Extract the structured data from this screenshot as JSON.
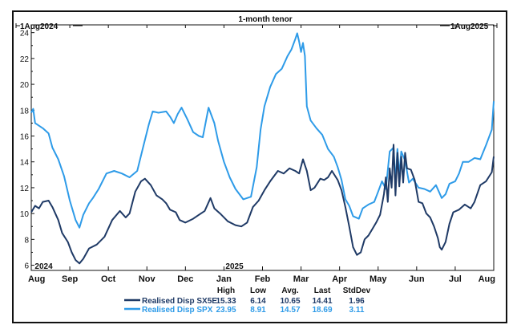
{
  "chart_data": {
    "type": "line",
    "title": "1-month tenor",
    "range_start_label": "1Aug2024",
    "range_end_label": "1Aug2025",
    "ylim": [
      5.6,
      24.6
    ],
    "yticks": [
      6,
      8,
      10,
      12,
      14,
      16,
      18,
      20,
      22,
      24
    ],
    "xlim": [
      0,
      12
    ],
    "month_ticks": [
      {
        "label": "Aug",
        "x": 0
      },
      {
        "label": "Sep",
        "x": 1
      },
      {
        "label": "Oct",
        "x": 2
      },
      {
        "label": "Nov",
        "x": 3
      },
      {
        "label": "Dec",
        "x": 4
      },
      {
        "label": "Jan",
        "x": 5
      },
      {
        "label": "Feb",
        "x": 6
      },
      {
        "label": "Mar",
        "x": 7
      },
      {
        "label": "Apr",
        "x": 8
      },
      {
        "label": "May",
        "x": 9
      },
      {
        "label": "Jun",
        "x": 10
      },
      {
        "label": "Jul",
        "x": 11
      },
      {
        "label": "Aug",
        "x": 12
      }
    ],
    "year_labels": [
      {
        "label": "2024",
        "x": 0.05
      },
      {
        "label": "2025",
        "x": 5.0
      }
    ],
    "stats_headers": [
      "High",
      "Low",
      "Avg.",
      "Last",
      "StdDev"
    ],
    "series": [
      {
        "name": "Realised Disp SX5E",
        "color": "#1f3a66",
        "stats": [
          "15.33",
          "6.14",
          "10.65",
          "14.41",
          "1.96"
        ],
        "points": [
          [
            0,
            10.1
          ],
          [
            0.1,
            10.6
          ],
          [
            0.2,
            10.4
          ],
          [
            0.3,
            10.9
          ],
          [
            0.45,
            11.0
          ],
          [
            0.55,
            10.5
          ],
          [
            0.7,
            9.5
          ],
          [
            0.8,
            8.5
          ],
          [
            0.95,
            7.8
          ],
          [
            1.05,
            7.0
          ],
          [
            1.15,
            6.4
          ],
          [
            1.25,
            6.14
          ],
          [
            1.35,
            6.5
          ],
          [
            1.5,
            7.3
          ],
          [
            1.7,
            7.6
          ],
          [
            1.9,
            8.2
          ],
          [
            2.1,
            9.5
          ],
          [
            2.3,
            10.2
          ],
          [
            2.45,
            9.7
          ],
          [
            2.55,
            10.0
          ],
          [
            2.7,
            11.7
          ],
          [
            2.85,
            12.5
          ],
          [
            2.95,
            12.7
          ],
          [
            3.1,
            12.2
          ],
          [
            3.25,
            11.4
          ],
          [
            3.4,
            11.1
          ],
          [
            3.5,
            10.8
          ],
          [
            3.6,
            10.3
          ],
          [
            3.75,
            10.1
          ],
          [
            3.85,
            9.5
          ],
          [
            4.0,
            9.3
          ],
          [
            4.2,
            9.6
          ],
          [
            4.35,
            9.9
          ],
          [
            4.5,
            10.2
          ],
          [
            4.65,
            11.2
          ],
          [
            4.75,
            10.4
          ],
          [
            4.9,
            10.0
          ],
          [
            5.1,
            9.4
          ],
          [
            5.3,
            9.1
          ],
          [
            5.45,
            9.0
          ],
          [
            5.6,
            9.3
          ],
          [
            5.75,
            10.5
          ],
          [
            5.9,
            11.0
          ],
          [
            6.05,
            11.8
          ],
          [
            6.2,
            12.5
          ],
          [
            6.4,
            13.3
          ],
          [
            6.55,
            13.1
          ],
          [
            6.7,
            13.5
          ],
          [
            6.85,
            13.3
          ],
          [
            6.95,
            13.1
          ],
          [
            7.05,
            14.2
          ],
          [
            7.15,
            13.3
          ],
          [
            7.25,
            11.8
          ],
          [
            7.35,
            12.0
          ],
          [
            7.5,
            12.7
          ],
          [
            7.6,
            12.6
          ],
          [
            7.7,
            12.8
          ],
          [
            7.8,
            13.3
          ],
          [
            7.95,
            12.6
          ],
          [
            8.05,
            11.8
          ],
          [
            8.15,
            10.5
          ],
          [
            8.25,
            9.0
          ],
          [
            8.35,
            7.4
          ],
          [
            8.45,
            6.8
          ],
          [
            8.55,
            7.0
          ],
          [
            8.65,
            8.0
          ],
          [
            8.75,
            8.3
          ],
          [
            8.85,
            8.8
          ],
          [
            8.95,
            9.3
          ],
          [
            9.05,
            9.9
          ],
          [
            9.15,
            11.5
          ],
          [
            9.2,
            12.8
          ],
          [
            9.25,
            10.9
          ],
          [
            9.3,
            13.5
          ],
          [
            9.35,
            12.0
          ],
          [
            9.4,
            15.33
          ],
          [
            9.45,
            11.4
          ],
          [
            9.5,
            14.7
          ],
          [
            9.55,
            12.1
          ],
          [
            9.6,
            14.4
          ],
          [
            9.65,
            12.4
          ],
          [
            9.7,
            14.7
          ],
          [
            9.75,
            13.5
          ],
          [
            9.85,
            13.4
          ],
          [
            9.95,
            12.6
          ],
          [
            10.05,
            10.9
          ],
          [
            10.15,
            10.8
          ],
          [
            10.25,
            10.0
          ],
          [
            10.35,
            9.7
          ],
          [
            10.45,
            9.0
          ],
          [
            10.55,
            8.1
          ],
          [
            10.6,
            7.4
          ],
          [
            10.65,
            7.2
          ],
          [
            10.75,
            7.8
          ],
          [
            10.85,
            9.2
          ],
          [
            10.95,
            10.1
          ],
          [
            11.1,
            10.3
          ],
          [
            11.25,
            10.7
          ],
          [
            11.4,
            10.4
          ],
          [
            11.5,
            10.9
          ],
          [
            11.65,
            12.2
          ],
          [
            11.8,
            12.5
          ],
          [
            11.95,
            13.2
          ],
          [
            12.0,
            14.41
          ]
        ]
      },
      {
        "name": "Realised Disp SPX",
        "color": "#2e9be8",
        "stats": [
          "23.95",
          "8.91",
          "14.57",
          "18.69",
          "3.11"
        ],
        "points": [
          [
            0,
            17.8
          ],
          [
            0.05,
            18.1
          ],
          [
            0.1,
            17.0
          ],
          [
            0.3,
            16.6
          ],
          [
            0.45,
            16.2
          ],
          [
            0.55,
            15.1
          ],
          [
            0.7,
            14.2
          ],
          [
            0.85,
            12.9
          ],
          [
            1.0,
            11.0
          ],
          [
            1.15,
            9.5
          ],
          [
            1.25,
            8.91
          ],
          [
            1.35,
            9.9
          ],
          [
            1.5,
            10.8
          ],
          [
            1.6,
            11.2
          ],
          [
            1.75,
            11.9
          ],
          [
            1.95,
            13.1
          ],
          [
            2.15,
            13.3
          ],
          [
            2.35,
            13.1
          ],
          [
            2.55,
            12.8
          ],
          [
            2.75,
            13.3
          ],
          [
            2.9,
            15.1
          ],
          [
            3.05,
            16.9
          ],
          [
            3.15,
            17.9
          ],
          [
            3.3,
            17.8
          ],
          [
            3.5,
            17.9
          ],
          [
            3.6,
            17.5
          ],
          [
            3.7,
            17.0
          ],
          [
            3.8,
            17.7
          ],
          [
            3.9,
            18.2
          ],
          [
            4.05,
            17.3
          ],
          [
            4.2,
            16.3
          ],
          [
            4.35,
            16.0
          ],
          [
            4.45,
            15.9
          ],
          [
            4.6,
            18.2
          ],
          [
            4.75,
            17.0
          ],
          [
            4.85,
            15.6
          ],
          [
            5.0,
            14.0
          ],
          [
            5.15,
            12.8
          ],
          [
            5.3,
            11.9
          ],
          [
            5.5,
            11.1
          ],
          [
            5.7,
            11.3
          ],
          [
            5.85,
            13.6
          ],
          [
            5.95,
            16.5
          ],
          [
            6.05,
            18.3
          ],
          [
            6.2,
            19.8
          ],
          [
            6.35,
            20.8
          ],
          [
            6.5,
            21.2
          ],
          [
            6.65,
            22.2
          ],
          [
            6.75,
            22.7
          ],
          [
            6.85,
            23.5
          ],
          [
            6.9,
            23.95
          ],
          [
            6.95,
            23.3
          ],
          [
            7.0,
            22.5
          ],
          [
            7.05,
            23.2
          ],
          [
            7.1,
            22.2
          ],
          [
            7.15,
            18.3
          ],
          [
            7.25,
            17.2
          ],
          [
            7.4,
            16.6
          ],
          [
            7.55,
            16.1
          ],
          [
            7.7,
            15.0
          ],
          [
            7.85,
            14.4
          ],
          [
            7.95,
            13.6
          ],
          [
            8.05,
            12.6
          ],
          [
            8.15,
            11.1
          ],
          [
            8.25,
            10.6
          ],
          [
            8.35,
            9.8
          ],
          [
            8.5,
            9.6
          ],
          [
            8.6,
            10.4
          ],
          [
            8.75,
            10.7
          ],
          [
            8.9,
            10.9
          ],
          [
            9.0,
            11.7
          ],
          [
            9.1,
            12.5
          ],
          [
            9.2,
            11.9
          ],
          [
            9.3,
            14.8
          ],
          [
            9.4,
            15.1
          ],
          [
            9.45,
            12.3
          ],
          [
            9.5,
            15.0
          ],
          [
            9.55,
            12.9
          ],
          [
            9.6,
            14.8
          ],
          [
            9.7,
            14.1
          ],
          [
            9.8,
            12.4
          ],
          [
            9.9,
            12.7
          ],
          [
            10.05,
            12.0
          ],
          [
            10.2,
            11.9
          ],
          [
            10.35,
            11.7
          ],
          [
            10.5,
            12.2
          ],
          [
            10.65,
            11.2
          ],
          [
            10.75,
            11.5
          ],
          [
            10.85,
            12.3
          ],
          [
            11.0,
            12.5
          ],
          [
            11.1,
            13.1
          ],
          [
            11.2,
            14.0
          ],
          [
            11.35,
            14.0
          ],
          [
            11.5,
            14.3
          ],
          [
            11.65,
            14.2
          ],
          [
            11.8,
            15.3
          ],
          [
            11.95,
            16.5
          ],
          [
            12.0,
            18.69
          ]
        ]
      }
    ]
  }
}
